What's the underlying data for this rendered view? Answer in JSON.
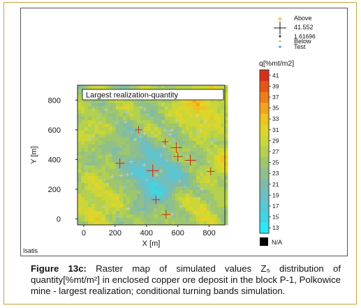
{
  "chart_data": {
    "type": "heatmap",
    "title": "Largest realization-quantity",
    "software_label": "Isatis",
    "xlabel": "X [m]",
    "ylabel": "Y [m]",
    "xlim": [
      -40,
      900
    ],
    "ylim": [
      -40,
      900
    ],
    "x_ticks": [
      0,
      200,
      400,
      600,
      800
    ],
    "y_ticks": [
      0,
      200,
      400,
      600,
      800
    ],
    "colorbar": {
      "title": "q[%mt/m2]",
      "ticks": [
        13,
        15,
        17,
        19,
        21,
        23,
        25,
        27,
        29,
        31,
        33,
        35,
        37,
        39,
        41
      ],
      "min": 12,
      "max": 42,
      "na_label": "N/A",
      "na_color": "#000000",
      "colors": [
        "#2de8f5",
        "#3fd6e4",
        "#57c8d4",
        "#6cbfc3",
        "#7fbba9",
        "#8fbf8b",
        "#9ec66f",
        "#b3d04e",
        "#cbd738",
        "#e0d52a",
        "#efc320",
        "#f4a41c",
        "#f07c18",
        "#e85614",
        "#d7301a"
      ]
    },
    "legend": {
      "above_label": "Above",
      "above_color": "#f0a020",
      "cross_value": "41.552",
      "small_value": "1.61696",
      "below_label": "Below",
      "below_color": "#d6c43a",
      "test_label": "Test",
      "test_color": "#5fa0e0"
    },
    "samples": [
      {
        "x": 440,
        "y": 325,
        "value": 41.552
      },
      {
        "x": 680,
        "y": 395,
        "value": 38
      },
      {
        "x": 590,
        "y": 480,
        "value": 37
      },
      {
        "x": 230,
        "y": 375,
        "value": 34
      },
      {
        "x": 600,
        "y": 420,
        "value": 33
      },
      {
        "x": 525,
        "y": 30,
        "value": 31
      },
      {
        "x": 460,
        "y": 130,
        "value": 29
      },
      {
        "x": 810,
        "y": 320,
        "value": 27
      },
      {
        "x": 350,
        "y": 600,
        "value": 25
      },
      {
        "x": 520,
        "y": 520,
        "value": 24
      }
    ]
  },
  "caption": {
    "figure_label": "Figure 13c:",
    "text": " Raster map of simulated values Z₅ distribution of quantity[%mt/m²] in enclosed copper ore deposit in the block P-1, Polkowice mine - largest realization; conditional turning bands simulation."
  }
}
